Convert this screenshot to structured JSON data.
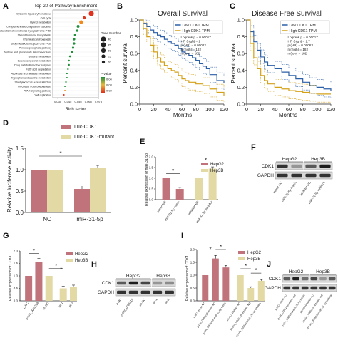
{
  "panel_letters": [
    "A",
    "B",
    "C",
    "D",
    "E",
    "F",
    "G",
    "H",
    "I",
    "J"
  ],
  "chart_data": [
    {
      "panel": "A",
      "type": "scatter",
      "title": "Top 20 of Pathway Enrichment",
      "xlabel": "Rich factor",
      "ylabel": "",
      "xlim": [
        0.03,
        0.075
      ],
      "x_ticks": [
        "0.035",
        "0.045",
        "0.055",
        "0.065",
        "0.075"
      ],
      "categories": [
        "Systemic lupus erythematosus",
        "Cell cycle",
        "Hybrid metabolism",
        "Complement and coagulation cascades",
        "Metabolism of xenobiotics by cytochrome P450",
        "Steroid hormone biosynthesis",
        "Chemical carcinogenesis",
        "Drug metabolism-cytochrome P450",
        "Pentose phosphate pathway",
        "Pentose and glucuronate interconversions",
        "Tyrosine metabolism",
        "Selenocompound metabolism",
        "Drug metabolism-other enzymes",
        "Fatty acid degradation",
        "Ascorbate and aldarate metabolism",
        "Tryptophan and alanine metabolism",
        "Staphylococcus aureus infection",
        "Glycolysis / Gluconeogenesis",
        "PPAR signaling pathway",
        "DNA replication"
      ],
      "x": [
        0.068,
        0.061,
        0.058,
        0.055,
        0.054,
        0.052,
        0.051,
        0.051,
        0.05,
        0.049,
        0.047,
        0.046,
        0.046,
        0.045,
        0.044,
        0.044,
        0.043,
        0.042,
        0.042,
        0.041
      ],
      "gene_number": [
        35,
        20,
        25,
        18,
        15,
        14,
        15,
        15,
        14,
        13,
        12,
        10,
        10,
        9,
        9,
        8,
        9,
        8,
        8,
        8
      ],
      "pvalue_color": [
        "#e0301e",
        "#d83a20",
        "#f08a1a",
        "#1f8f3a",
        "#1f8f3a",
        "#1f8f3a",
        "#1f8f3a",
        "#1f8f3a",
        "#1f8f3a",
        "#1f8f3a",
        "#1f8f3a",
        "#1f8f3a",
        "#1f8f3a",
        "#1f8f3a",
        "#1f8f3a",
        "#1f8f3a",
        "#1f8f3a",
        "#1f8f3a",
        "#f08a1a",
        "#e0301e"
      ],
      "legend_size_title": "Gene Number",
      "legend_size_values": [
        "40",
        "35",
        "30",
        "25",
        "20"
      ],
      "legend_color_title": "P Value",
      "legend_color_values": [
        "0.04",
        "0.03",
        "0.02"
      ]
    },
    {
      "panel": "B",
      "type": "line",
      "title": "Overall Survival",
      "xlabel": "Months",
      "ylabel": "Percent survival",
      "xlim": [
        0,
        120
      ],
      "ylim": [
        0,
        1.0
      ],
      "x_ticks": [
        "0",
        "20",
        "40",
        "60",
        "80",
        "100",
        "120"
      ],
      "y_ticks": [
        "0.0",
        "0.2",
        "0.4",
        "0.6",
        "0.8",
        "1.0"
      ],
      "legend": [
        "Low CDK1 TPM",
        "High CDK1 TPM"
      ],
      "stats": [
        "Logrank p = 0.00017",
        "HR (high) = 2",
        "p (HR) = 0.00022",
        "n (high) = 182",
        "n (low) = 182"
      ],
      "series": [
        {
          "name": "Low CDK1 TPM",
          "color": "#2b5fa8",
          "x": [
            0,
            5,
            10,
            15,
            20,
            25,
            30,
            35,
            40,
            45,
            50,
            55,
            60,
            65,
            70,
            75,
            80,
            85,
            90,
            95,
            100,
            110,
            120
          ],
          "y": [
            1.0,
            0.96,
            0.92,
            0.88,
            0.85,
            0.82,
            0.8,
            0.77,
            0.74,
            0.72,
            0.7,
            0.66,
            0.62,
            0.6,
            0.58,
            0.55,
            0.52,
            0.48,
            0.45,
            0.42,
            0.35,
            0.28,
            0.25
          ]
        },
        {
          "name": "High CDK1 TPM",
          "color": "#d4a017",
          "x": [
            0,
            5,
            10,
            15,
            20,
            25,
            30,
            35,
            40,
            45,
            50,
            55,
            60,
            65,
            70,
            80,
            90,
            100,
            110,
            120
          ],
          "y": [
            1.0,
            0.9,
            0.8,
            0.7,
            0.62,
            0.55,
            0.5,
            0.46,
            0.42,
            0.4,
            0.38,
            0.34,
            0.3,
            0.28,
            0.26,
            0.24,
            0.22,
            0.18,
            0.14,
            0.1
          ]
        }
      ]
    },
    {
      "panel": "C",
      "type": "line",
      "title": "Disease Free Survival",
      "xlabel": "Months",
      "ylabel": "Percent survival",
      "xlim": [
        0,
        120
      ],
      "ylim": [
        0,
        1.0
      ],
      "x_ticks": [
        "0",
        "20",
        "40",
        "60",
        "80",
        "100",
        "120"
      ],
      "y_ticks": [
        "0.0",
        "0.2",
        "0.4",
        "0.6",
        "0.8",
        "1.0"
      ],
      "legend": [
        "Low CDK1 TPM",
        "High CDK1 TPM"
      ],
      "stats": [
        "Logrank p = 0.00017",
        "HR (high) = 1.7",
        "p (HR) = 0.00063",
        "n (high) = 182",
        "n (low) = 182"
      ],
      "series": [
        {
          "name": "Low CDK1 TPM",
          "color": "#2b5fa8",
          "x": [
            0,
            5,
            10,
            15,
            20,
            25,
            30,
            40,
            50,
            60,
            70,
            80,
            90,
            100,
            110,
            120
          ],
          "y": [
            1.0,
            0.86,
            0.74,
            0.64,
            0.56,
            0.5,
            0.46,
            0.42,
            0.38,
            0.34,
            0.3,
            0.26,
            0.22,
            0.2,
            0.18,
            0.16
          ]
        },
        {
          "name": "High CDK1 TPM",
          "color": "#d4a017",
          "x": [
            0,
            5,
            10,
            15,
            20,
            25,
            30,
            40,
            50,
            60,
            70,
            80,
            90,
            100,
            110,
            120
          ],
          "y": [
            1.0,
            0.72,
            0.55,
            0.42,
            0.34,
            0.28,
            0.24,
            0.2,
            0.18,
            0.16,
            0.15,
            0.14,
            0.13,
            0.12,
            0.12,
            0.12
          ]
        }
      ]
    },
    {
      "panel": "D",
      "type": "bar",
      "title": "",
      "xlabel": "",
      "ylabel": "Relative luciferase activity",
      "ylim": [
        0.0,
        1.5
      ],
      "y_ticks": [
        "0.0",
        "0.5",
        "1.0",
        "1.5"
      ],
      "categories": [
        "NC",
        "miR-31-5p"
      ],
      "series": [
        {
          "name": "Luc-CDK1",
          "color": "#c0737a",
          "values": [
            1.0,
            0.55
          ],
          "errors": [
            0,
            0.05
          ]
        },
        {
          "name": "Luc-CDK1-mutant",
          "color": "#e3d9a4",
          "values": [
            1.0,
            1.05
          ],
          "errors": [
            0,
            0.05
          ]
        }
      ],
      "significance": [
        "*"
      ]
    },
    {
      "panel": "E",
      "type": "bar",
      "title": "",
      "xlabel": "",
      "ylabel": "Relative expression of miR-31-5p",
      "ylim": [
        0.0,
        2.0
      ],
      "y_ticks": [
        "0.0",
        "0.5",
        "1.0",
        "1.5",
        "2.0"
      ],
      "categories": [
        "mimic NC",
        "miR-31-5p mimic",
        "inhibitor NC",
        "miR-31-5p inhibitor"
      ],
      "values": [
        1.0,
        0.5,
        1.0,
        1.45
      ],
      "errors": [
        0,
        0.07,
        0,
        0.08
      ],
      "bar_colors": [
        "#c0737a",
        "#c0737a",
        "#e3d9a4",
        "#e3d9a4"
      ],
      "legend": [
        "HepG2",
        "Hep3B"
      ],
      "significance": [
        "*",
        "*"
      ]
    },
    {
      "panel": "G",
      "type": "bar",
      "title": "",
      "xlabel": "",
      "ylabel": "Relative expression of CDK1",
      "ylim": [
        0.0,
        2.0
      ],
      "y_ticks": [
        "0.0",
        "0.5",
        "1.0",
        "1.5",
        "2.0"
      ],
      "categories": [
        "p-NC",
        "p-circ_0005218",
        "sh-NC",
        "sh-1",
        "sh-2"
      ],
      "values": [
        1.0,
        1.55,
        1.0,
        0.5,
        0.55
      ],
      "errors": [
        0,
        0.15,
        0,
        0.08,
        0.08
      ],
      "bar_colors": [
        "#c0737a",
        "#c0737a",
        "#e3d9a4",
        "#e3d9a4",
        "#e3d9a4"
      ],
      "legend": [
        "HepG2",
        "Hep3B"
      ],
      "significance": [
        "*",
        "*",
        "*"
      ]
    },
    {
      "panel": "I",
      "type": "bar",
      "title": "",
      "xlabel": "",
      "ylabel": "Relative expression of CDK1",
      "ylim": [
        0.0,
        2.0
      ],
      "y_ticks": [
        "0.0",
        "0.5",
        "1.0",
        "1.5",
        "2.0"
      ],
      "categories": [
        "p-NC+mimic NC",
        "p-circ_0005218+mimic NC",
        "p-circ_0005218+miR-31-5p mimic",
        "sh-NC+inhibitor NC",
        "sh-circ_0005218+inhibitor NC",
        "sh-circ_0005218+miR-31-5p inhibitor"
      ],
      "values": [
        1.0,
        1.65,
        1.3,
        1.0,
        0.5,
        0.78
      ],
      "errors": [
        0,
        0.12,
        0.08,
        0,
        0.05,
        0.05
      ],
      "bar_colors": [
        "#c0737a",
        "#c0737a",
        "#c0737a",
        "#e3d9a4",
        "#e3d9a4",
        "#e3d9a4"
      ],
      "legend": [
        "HepG2",
        "Hep3B"
      ],
      "significance": [
        "*",
        "*",
        "*",
        "*"
      ]
    }
  ],
  "blots": [
    {
      "panel": "F",
      "groups": [
        "HepG2",
        "Hep3B"
      ],
      "rows": [
        "CDK1",
        "GAPDH"
      ],
      "lanes": [
        "mimic NC",
        "miR-31-5p mimic",
        "inhibitor NC",
        "miR-31-5p inhibitor"
      ],
      "cdk1_intensity": [
        0.9,
        0.4,
        0.7,
        1.0
      ],
      "gapdh_intensity": [
        0.9,
        0.9,
        0.9,
        0.9
      ]
    },
    {
      "panel": "H",
      "groups": [
        "HepG2",
        "Hep3B"
      ],
      "rows": [
        "CDK1",
        "GAPDH"
      ],
      "lanes": [
        "p-NC",
        "p-circ_0005218",
        "sh-NC",
        "sh-1",
        "sh-2"
      ],
      "cdk1_intensity": [
        0.7,
        1.0,
        0.8,
        0.4,
        0.45
      ],
      "gapdh_intensity": [
        0.9,
        0.9,
        0.9,
        0.9,
        0.9
      ]
    },
    {
      "panel": "J",
      "groups": [
        "HepG2",
        "Hep3B"
      ],
      "rows": [
        "CDK1",
        "GAPDH"
      ],
      "lanes": [
        "p-NC+mimic NC",
        "p-circ_0005218+mimic NC",
        "p-circ_0005218+miR-31-5p mimic",
        "sh-NC+inhibitor NC",
        "sh-circ_0005218+inhibitor NC",
        "sh-circ_0005218+miR-31-5p inhibitor"
      ],
      "cdk1_intensity": [
        0.7,
        1.0,
        0.6,
        0.8,
        0.4,
        0.7
      ],
      "gapdh_intensity": [
        0.9,
        0.9,
        0.9,
        0.9,
        0.9,
        0.9
      ]
    }
  ]
}
